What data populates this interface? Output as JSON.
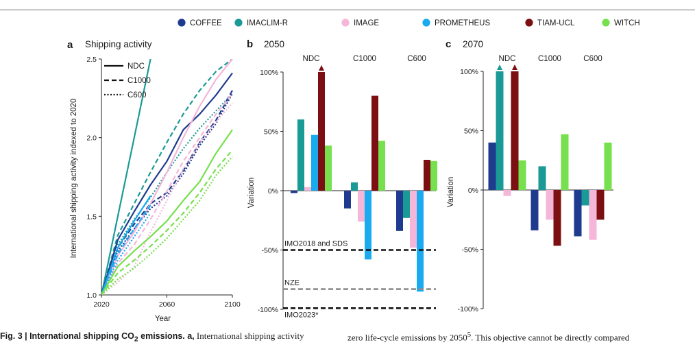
{
  "legend": {
    "models": [
      {
        "name": "COFFEE",
        "color": "#1f3b8f"
      },
      {
        "name": "IMACLIM-R",
        "color": "#1a9a96"
      },
      {
        "name": "IMAGE",
        "color": "#f4b6d9"
      },
      {
        "name": "PROMETHEUS",
        "color": "#1aaaf0"
      },
      {
        "name": "TIAM-UCL",
        "color": "#7b0f12"
      },
      {
        "name": "WITCH",
        "color": "#76e04e"
      }
    ]
  },
  "caption": {
    "fig_label": "Fig. 3 | International shipping CO",
    "fig_sub": "2",
    "fig_rest": " emissions. a,",
    "left_text": " International shipping activity",
    "right_text": "zero life-cycle emissions by 2050",
    "right_sup": "5",
    "right_rest": ". This objective cannot be directly compared"
  },
  "chart_data": [
    {
      "type": "line",
      "panel_letter": "a",
      "title": "Shipping activity",
      "xlabel": "Year",
      "ylabel": "International shipping activity indexed to 2020",
      "xlim": [
        2020,
        2100
      ],
      "ylim": [
        1.0,
        2.5
      ],
      "xticks": [
        "2020",
        "2060",
        "2100"
      ],
      "yticks": [
        "1.0",
        "1.5",
        "2.0",
        "2.5"
      ],
      "scenario_legend": [
        "NDC",
        "C1000",
        "C600"
      ],
      "series": [
        {
          "model": "IMACLIM-R",
          "scenario": "NDC",
          "x": [
            2020,
            2030,
            2040,
            2050
          ],
          "y": [
            1.0,
            1.5,
            2.0,
            2.5
          ]
        },
        {
          "model": "IMACLIM-R",
          "scenario": "C1000",
          "x": [
            2020,
            2030,
            2040,
            2050,
            2060,
            2070,
            2080,
            2090,
            2100
          ],
          "y": [
            1.0,
            1.38,
            1.58,
            1.78,
            1.97,
            2.15,
            2.3,
            2.42,
            2.5
          ]
        },
        {
          "model": "IMACLIM-R",
          "scenario": "C600",
          "x": [
            2020,
            2030,
            2040,
            2050,
            2060,
            2070,
            2080,
            2090,
            2100
          ],
          "y": [
            1.0,
            1.32,
            1.48,
            1.62,
            1.78,
            1.93,
            2.06,
            2.17,
            2.28
          ]
        },
        {
          "model": "COFFEE",
          "scenario": "NDC",
          "x": [
            2020,
            2030,
            2040,
            2050,
            2060,
            2070,
            2080,
            2090,
            2100
          ],
          "y": [
            1.0,
            1.35,
            1.53,
            1.7,
            1.85,
            2.05,
            2.15,
            2.27,
            2.41
          ]
        },
        {
          "model": "COFFEE",
          "scenario": "C1000",
          "x": [
            2020,
            2030,
            2040,
            2050,
            2060,
            2070,
            2080,
            2090,
            2100
          ],
          "y": [
            1.0,
            1.3,
            1.45,
            1.58,
            1.65,
            1.79,
            1.97,
            2.11,
            2.3
          ]
        },
        {
          "model": "COFFEE",
          "scenario": "C600",
          "x": [
            2020,
            2030,
            2040,
            2050,
            2060,
            2070,
            2080,
            2090,
            2100
          ],
          "y": [
            1.0,
            1.28,
            1.42,
            1.55,
            1.63,
            1.77,
            1.95,
            2.09,
            2.28
          ]
        },
        {
          "model": "IMAGE",
          "scenario": "NDC",
          "x": [
            2020,
            2030,
            2040,
            2050,
            2060,
            2070,
            2080,
            2090,
            2100
          ],
          "y": [
            1.0,
            1.25,
            1.4,
            1.58,
            1.78,
            2.0,
            2.2,
            2.37,
            2.5
          ]
        },
        {
          "model": "IMAGE",
          "scenario": "C1000",
          "x": [
            2020,
            2030,
            2040,
            2050,
            2060,
            2070,
            2080,
            2090,
            2100
          ],
          "y": [
            1.0,
            1.2,
            1.32,
            1.48,
            1.66,
            1.85,
            2.0,
            2.15,
            2.28
          ]
        },
        {
          "model": "IMAGE",
          "scenario": "C600",
          "x": [
            2020,
            2030,
            2040,
            2050,
            2060,
            2070,
            2080,
            2090,
            2100
          ],
          "y": [
            1.0,
            1.08,
            1.18,
            1.4,
            1.6,
            1.8,
            1.97,
            2.1,
            2.22
          ]
        },
        {
          "model": "PROMETHEUS",
          "scenario": "NDC",
          "x": [
            2020,
            2030,
            2040,
            2050
          ],
          "y": [
            1.0,
            1.3,
            1.47,
            1.63
          ]
        },
        {
          "model": "PROMETHEUS",
          "scenario": "C1000",
          "x": [
            2020,
            2030,
            2040,
            2050
          ],
          "y": [
            1.0,
            1.26,
            1.42,
            1.57
          ]
        },
        {
          "model": "PROMETHEUS",
          "scenario": "C600",
          "x": [
            2020,
            2030,
            2040,
            2050
          ],
          "y": [
            1.0,
            1.22,
            1.37,
            1.52
          ]
        },
        {
          "model": "WITCH",
          "scenario": "NDC",
          "x": [
            2020,
            2030,
            2040,
            2050,
            2060,
            2070,
            2080,
            2090,
            2100
          ],
          "y": [
            1.0,
            1.18,
            1.28,
            1.37,
            1.47,
            1.6,
            1.72,
            1.9,
            2.05
          ]
        },
        {
          "model": "WITCH",
          "scenario": "C1000",
          "x": [
            2020,
            2030,
            2040,
            2050,
            2060,
            2070,
            2080,
            2090,
            2100
          ],
          "y": [
            1.0,
            1.14,
            1.22,
            1.31,
            1.41,
            1.52,
            1.65,
            1.8,
            1.92
          ]
        },
        {
          "model": "WITCH",
          "scenario": "C600",
          "x": [
            2020,
            2030,
            2040,
            2050,
            2060,
            2070,
            2080,
            2090,
            2100
          ],
          "y": [
            1.0,
            1.1,
            1.17,
            1.26,
            1.36,
            1.48,
            1.6,
            1.76,
            1.88
          ]
        }
      ]
    },
    {
      "type": "bar",
      "panel_letter": "b",
      "title": "2050",
      "ylabel": "Variation",
      "ylim": [
        -100,
        100
      ],
      "yticks": [
        "100%",
        "50%",
        "0%",
        "-50%",
        "-100%"
      ],
      "categories": [
        "NDC",
        "C1000",
        "C600"
      ],
      "series": [
        {
          "name": "COFFEE",
          "values": [
            -2,
            -15,
            -34
          ]
        },
        {
          "name": "IMACLIM-R",
          "values": [
            60,
            7,
            -23
          ]
        },
        {
          "name": "IMAGE",
          "values": [
            3,
            -26,
            -48
          ]
        },
        {
          "name": "PROMETHEUS",
          "values": [
            47,
            -58,
            -85
          ]
        },
        {
          "name": "TIAM-UCL",
          "values": [
            100,
            80,
            26
          ]
        },
        {
          "name": "WITCH",
          "values": [
            38,
            42,
            25
          ]
        }
      ],
      "truncated": [
        {
          "series": "TIAM-UCL",
          "category": "NDC"
        }
      ],
      "reference_lines": [
        {
          "label": "IMO2018 and SDS",
          "value": -50,
          "color": "#111111"
        },
        {
          "label": "NZE",
          "value": -83,
          "color": "#8c8c8c"
        },
        {
          "label": "IMO2023*",
          "value": -99,
          "color": "#111111"
        }
      ]
    },
    {
      "type": "bar",
      "panel_letter": "c",
      "title": "2070",
      "ylabel": "Variation",
      "ylim": [
        -100,
        100
      ],
      "yticks": [
        "100%",
        "50%",
        "0%",
        "-50%",
        "-100%"
      ],
      "categories": [
        "NDC",
        "C1000",
        "C600"
      ],
      "series": [
        {
          "name": "COFFEE",
          "values": [
            40,
            -34,
            -39
          ]
        },
        {
          "name": "IMACLIM-R",
          "values": [
            100,
            20,
            -13
          ]
        },
        {
          "name": "IMAGE",
          "values": [
            -5,
            -25,
            -42
          ]
        },
        {
          "name": "TIAM-UCL",
          "values": [
            100,
            -47,
            -25
          ]
        },
        {
          "name": "WITCH",
          "values": [
            25,
            47,
            40
          ]
        }
      ],
      "truncated": [
        {
          "series": "IMACLIM-R",
          "category": "NDC"
        },
        {
          "series": "TIAM-UCL",
          "category": "NDC"
        }
      ]
    }
  ]
}
